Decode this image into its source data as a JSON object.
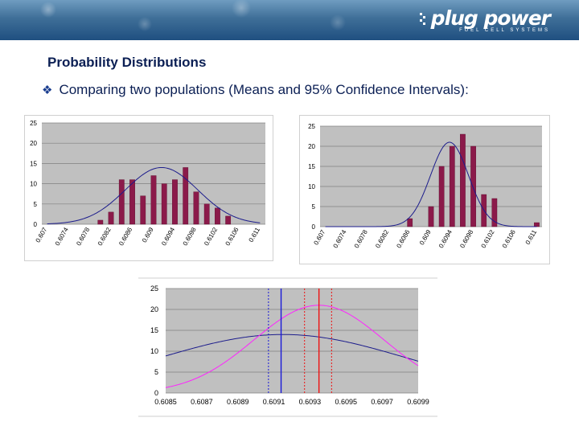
{
  "logo": {
    "name": "plug power",
    "tagline": "FUEL CELL SYSTEMS"
  },
  "title": "Probability Distributions",
  "bullet": {
    "icon": "diamond-bullet-icon",
    "text": "Comparing two populations (Means and 95% Confidence Intervals):"
  },
  "colors": {
    "bar": "#8b1a4a",
    "curve": "#1c1c8c",
    "plot_bg": "#c0c0c0",
    "pink": "#ff22ff",
    "blue_line": "#1818d8",
    "red_line": "#ee1111",
    "title": "#0b1f54"
  },
  "chart_data": [
    {
      "type": "bar",
      "categories": [
        "0.607",
        "0.6072",
        "0.6074",
        "0.6076",
        "0.6078",
        "0.608",
        "0.6082",
        "0.6084",
        "0.6086",
        "0.6088",
        "0.609",
        "0.6092",
        "0.6094",
        "0.6096",
        "0.6098",
        "0.61",
        "0.6102",
        "0.6104",
        "0.6106",
        "0.6108",
        "0.611"
      ],
      "tick_labels": [
        "0.607",
        "0.6074",
        "0.6078",
        "0.6082",
        "0.6086",
        "0.609",
        "0.6094",
        "0.6098",
        "0.6102",
        "0.6106",
        "0.611"
      ],
      "values": [
        0,
        0,
        0,
        0,
        0,
        1,
        3,
        11,
        11,
        7,
        12,
        10,
        11,
        14,
        8,
        5,
        4,
        2,
        0,
        0,
        0
      ],
      "yticks": [
        0,
        5,
        10,
        15,
        20,
        25
      ],
      "ylim": [
        0,
        25
      ],
      "curve": {
        "type": "normal",
        "mean": 0.60915,
        "sd": 0.00068,
        "peak": 14
      }
    },
    {
      "type": "bar",
      "categories": [
        "0.607",
        "0.6072",
        "0.6074",
        "0.6076",
        "0.6078",
        "0.608",
        "0.6082",
        "0.6084",
        "0.6086",
        "0.6088",
        "0.609",
        "0.6092",
        "0.6094",
        "0.6096",
        "0.6098",
        "0.61",
        "0.6102",
        "0.6104",
        "0.6106",
        "0.6108",
        "0.611"
      ],
      "tick_labels": [
        "0.607",
        "0.6074",
        "0.6078",
        "0.6082",
        "0.6086",
        "0.609",
        "0.6094",
        "0.6098",
        "0.6102",
        "0.6106",
        "0.611"
      ],
      "values": [
        0,
        0,
        0,
        0,
        0,
        0,
        0,
        0,
        2,
        0,
        5,
        15,
        20,
        23,
        20,
        8,
        7,
        0,
        0,
        0,
        1
      ],
      "yticks": [
        0,
        5,
        10,
        15,
        20,
        25
      ],
      "ylim": [
        0,
        25
      ],
      "curve": {
        "type": "normal",
        "mean": 0.60935,
        "sd": 0.00036,
        "peak": 21
      }
    },
    {
      "type": "line",
      "xlim": [
        0.6085,
        0.6099
      ],
      "xticks": [
        "0.6085",
        "0.6087",
        "0.6089",
        "0.6091",
        "0.6093",
        "0.6095",
        "0.6097",
        "0.6099"
      ],
      "yticks": [
        0,
        5,
        10,
        15,
        20,
        25
      ],
      "ylim": [
        0,
        25
      ],
      "series": [
        {
          "curve": "normal",
          "mean": 0.60915,
          "sd": 0.00068,
          "peak": 14,
          "color": "#1c1c8c"
        },
        {
          "curve": "normal",
          "mean": 0.60935,
          "sd": 0.00036,
          "peak": 21,
          "color": "#ff22ff"
        }
      ],
      "vlines": [
        {
          "x": 0.60907,
          "color": "#1818d8",
          "style": "dotted"
        },
        {
          "x": 0.60914,
          "color": "#1818d8",
          "style": "solid"
        },
        {
          "x": 0.60927,
          "color": "#ee1111",
          "style": "dotted"
        },
        {
          "x": 0.60935,
          "color": "#ee1111",
          "style": "solid"
        },
        {
          "x": 0.60942,
          "color": "#ee1111",
          "style": "dotted"
        }
      ]
    }
  ]
}
